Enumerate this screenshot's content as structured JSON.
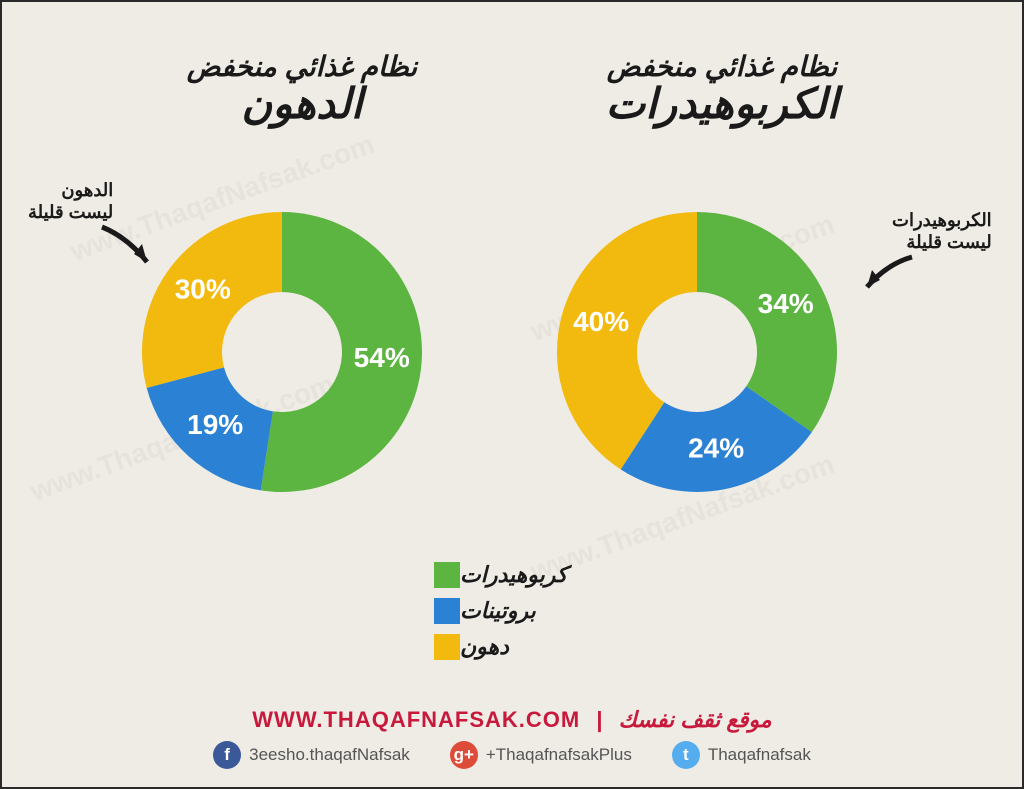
{
  "background_color": "#efece5",
  "colors": {
    "carbs": "#5cb441",
    "protein": "#2b82d4",
    "fat": "#f2b90e",
    "text": "#1a1a1a",
    "accent": "#c8193c",
    "facebook": "#3b5998",
    "gplus": "#dd4b39",
    "twitter": "#55acee"
  },
  "left_chart": {
    "title_line1": "نظام غذائي منخفض",
    "title_line2": "الدهون",
    "annotation": "الدهون\nليست قليلة",
    "slices": [
      {
        "key": "carbs",
        "value": 54,
        "label": "54%"
      },
      {
        "key": "protein",
        "value": 19,
        "label": "19%"
      },
      {
        "key": "fat",
        "value": 30,
        "label": "30%"
      }
    ],
    "inner_radius": 60,
    "outer_radius": 140
  },
  "right_chart": {
    "title_line1": "نظام غذائي منخفض",
    "title_line2": "الكربوهيدرات",
    "annotation": "الكربوهيدرات\nليست قليلة",
    "slices": [
      {
        "key": "carbs",
        "value": 34,
        "label": "34%"
      },
      {
        "key": "protein",
        "value": 24,
        "label": "24%"
      },
      {
        "key": "fat",
        "value": 40,
        "label": "40%"
      }
    ],
    "inner_radius": 60,
    "outer_radius": 140
  },
  "legend": [
    {
      "key": "carbs",
      "label": "كربوهيدرات"
    },
    {
      "key": "protein",
      "label": "بروتينات"
    },
    {
      "key": "fat",
      "label": "دهون"
    }
  ],
  "footer": {
    "url": "WWW.THAQAFNAFSAK.COM",
    "site_label": "موقع ثقف نفسك",
    "social": [
      {
        "platform": "facebook",
        "handle": "3eesho.thaqafNafsak",
        "glyph": "f"
      },
      {
        "platform": "gplus",
        "handle": "+ThaqafnafsakPlus",
        "glyph": "g+"
      },
      {
        "platform": "twitter",
        "handle": "Thaqafnafsak",
        "glyph": "t"
      }
    ]
  }
}
